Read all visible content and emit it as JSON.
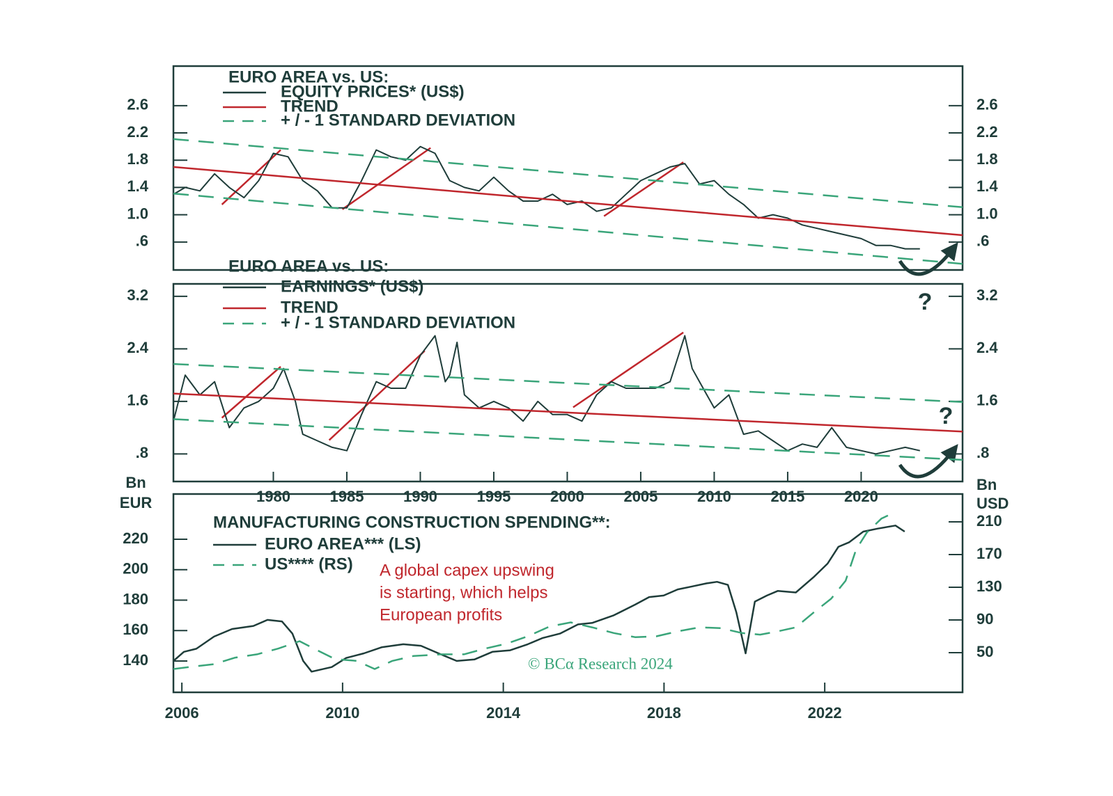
{
  "chart_data": [
    {
      "type": "line",
      "legend_title": "EURO AREA vs. US:",
      "ytick_labels_both_sides": true,
      "xlim": [
        1973.2,
        2026.9
      ],
      "ylim": [
        0.19,
        3.18
      ],
      "yticks": [
        {
          "value": 0.6,
          "label": ".6"
        },
        {
          "value": 1.0,
          "label": "1.0"
        },
        {
          "value": 1.4,
          "label": "1.4"
        },
        {
          "value": 1.8,
          "label": "1.8"
        },
        {
          "value": 2.2,
          "label": "2.2"
        },
        {
          "value": 2.6,
          "label": "2.6"
        }
      ],
      "series": [
        {
          "name": "EQUITY PRICES* (US$)",
          "color": "#1f3d3a",
          "width": 2,
          "x": [
            1973.2,
            1974,
            1975,
            1976,
            1977,
            1978,
            1979,
            1980,
            1981,
            1982,
            1983,
            1984,
            1985,
            1986,
            1987,
            1988,
            1989,
            1990,
            1991,
            1992,
            1993,
            1994,
            1995,
            1996,
            1997,
            1998,
            1999,
            2000,
            2001,
            2002,
            2003,
            2004,
            2005,
            2006,
            2007,
            2008,
            2009,
            2010,
            2011,
            2012,
            2013,
            2014,
            2015,
            2016,
            2017,
            2018,
            2019,
            2020,
            2021,
            2022,
            2023,
            2024
          ],
          "values": [
            1.3,
            1.4,
            1.35,
            1.6,
            1.4,
            1.25,
            1.5,
            1.9,
            1.85,
            1.5,
            1.35,
            1.1,
            1.1,
            1.5,
            1.95,
            1.85,
            1.8,
            2.0,
            1.9,
            1.5,
            1.4,
            1.35,
            1.55,
            1.35,
            1.2,
            1.2,
            1.3,
            1.15,
            1.2,
            1.05,
            1.1,
            1.3,
            1.5,
            1.6,
            1.7,
            1.75,
            1.45,
            1.5,
            1.3,
            1.15,
            0.95,
            1.0,
            0.95,
            0.85,
            0.8,
            0.75,
            0.7,
            0.65,
            0.55,
            0.55,
            0.5,
            0.5
          ]
        },
        {
          "name": "TREND",
          "color": "#c0272d",
          "width": 2.5,
          "x": [
            1973.2,
            2026.9
          ],
          "values": [
            1.7,
            0.7
          ]
        },
        {
          "name": "+ / - 1 STANDARD DEVIATION",
          "color": "#3aa57a",
          "width": 2.5,
          "dashed": true,
          "x": [
            1973.2,
            2026.9
          ],
          "values": [
            2.11,
            1.11
          ],
          "lower": [
            1.31,
            0.28
          ]
        }
      ],
      "trend_segments": {
        "color": "#c0272d",
        "segments": [
          {
            "x": [
              1976.5,
              1980.5
            ],
            "values": [
              1.15,
              1.95
            ]
          },
          {
            "x": [
              1984.7,
              1990.7
            ],
            "values": [
              1.08,
              1.98
            ]
          },
          {
            "x": [
              2002.5,
              2007.9
            ],
            "values": [
              0.98,
              1.77
            ]
          }
        ]
      }
    },
    {
      "type": "line",
      "legend_title": "EURO AREA vs. US:",
      "ytick_labels_both_sides": true,
      "annotations": [
        "?",
        "?"
      ],
      "xlim": [
        1973.2,
        2026.9
      ],
      "xticks": [
        1980,
        1985,
        1990,
        1995,
        2000,
        2005,
        2010,
        2015,
        2020
      ],
      "ylim": [
        0.38,
        3.39
      ],
      "yticks": [
        {
          "value": 0.8,
          "label": ".8"
        },
        1.6,
        2.4,
        3.2
      ],
      "series": [
        {
          "name": "EARNINGS* (US$)",
          "color": "#1f3d3a",
          "width": 2,
          "x": [
            1973.2,
            1974,
            1975,
            1976,
            1977,
            1978,
            1979,
            1980,
            1980.7,
            1981.5,
            1982,
            1983,
            1984,
            1985,
            1986,
            1987,
            1988,
            1989,
            1990,
            1991,
            1991.7,
            1992,
            1992.5,
            1993,
            1994,
            1995,
            1996,
            1997,
            1998,
            1999,
            2000,
            2001,
            2002,
            2003,
            2004,
            2005,
            2006,
            2007,
            2008,
            2008.5,
            2009,
            2010,
            2011,
            2012,
            2013,
            2014,
            2015,
            2016,
            2017,
            2018,
            2019,
            2020,
            2021,
            2022,
            2023,
            2024
          ],
          "values": [
            1.3,
            2.0,
            1.7,
            1.9,
            1.2,
            1.5,
            1.6,
            1.8,
            2.1,
            1.6,
            1.1,
            1.0,
            0.9,
            0.85,
            1.4,
            1.9,
            1.8,
            1.8,
            2.3,
            2.6,
            1.9,
            2.0,
            2.5,
            1.7,
            1.5,
            1.6,
            1.5,
            1.3,
            1.6,
            1.4,
            1.4,
            1.3,
            1.7,
            1.9,
            1.8,
            1.8,
            1.8,
            1.9,
            2.6,
            2.1,
            1.9,
            1.5,
            1.7,
            1.1,
            1.15,
            1.0,
            0.85,
            0.95,
            0.9,
            1.2,
            0.9,
            0.85,
            0.8,
            0.85,
            0.9,
            0.85
          ]
        },
        {
          "name": "TREND",
          "color": "#c0272d",
          "width": 2.5,
          "x": [
            1973.2,
            2026.9
          ],
          "values": [
            1.72,
            1.14
          ]
        },
        {
          "name": "+ / - 1 STANDARD DEVIATION",
          "color": "#3aa57a",
          "width": 2.5,
          "dashed": true,
          "x": [
            1973.2,
            2026.9
          ],
          "values": [
            2.17,
            1.59
          ],
          "lower": [
            1.33,
            0.71
          ]
        }
      ],
      "trend_segments": {
        "color": "#c0272d",
        "segments": [
          {
            "x": [
              1976.5,
              1980.5
            ],
            "values": [
              1.35,
              2.13
            ]
          },
          {
            "x": [
              1983.8,
              1990.3
            ],
            "values": [
              1.01,
              2.37
            ]
          },
          {
            "x": [
              2000.4,
              2007.9
            ],
            "values": [
              1.51,
              2.65
            ]
          }
        ]
      }
    },
    {
      "type": "line",
      "legend_title": "MANUFACTURING CONSTRUCTION SPENDING**:",
      "ylabel": [
        "Bn",
        "EUR"
      ],
      "y2label": [
        "Bn",
        "USD"
      ],
      "annotation": [
        "A global capex upswing",
        "is starting, which helps",
        "European profits"
      ],
      "source": "© BCα Research 2024",
      "xlim": [
        2005.79,
        2025.43
      ],
      "xticks": [
        2006,
        2010,
        2014,
        2018,
        2022
      ],
      "ylim": [
        119.4,
        249.7
      ],
      "yticks": [
        140,
        160,
        180,
        200,
        220
      ],
      "y2lim": [
        1.5,
        244
      ],
      "y2ticks": [
        50,
        90,
        130,
        170,
        210
      ],
      "series": [
        {
          "name": "EURO AREA*** (LS)",
          "color": "#1f3d3a",
          "width": 2.5,
          "x": [
            2005.79,
            2006.05,
            2006.36,
            2006.8,
            2007.25,
            2007.78,
            2008.13,
            2008.49,
            2008.75,
            2009.02,
            2009.23,
            2009.73,
            2010.09,
            2010.53,
            2010.97,
            2011.51,
            2011.95,
            2012.39,
            2012.84,
            2013.28,
            2013.73,
            2014.17,
            2014.61,
            2014.97,
            2015.41,
            2015.86,
            2016.21,
            2016.75,
            2017.28,
            2017.63,
            2017.99,
            2018.34,
            2018.7,
            2019.06,
            2019.32,
            2019.59,
            2019.8,
            2020.03,
            2020.26,
            2020.56,
            2020.83,
            2021.28,
            2021.72,
            2022.07,
            2022.34,
            2022.61,
            2022.96,
            2023.32,
            2023.76,
            2023.99
          ],
          "values": [
            140,
            146,
            148,
            156,
            161,
            163,
            167,
            166,
            158,
            140,
            133,
            136,
            142,
            145,
            149,
            151,
            150,
            145,
            140,
            141,
            146,
            147,
            151,
            155,
            158,
            164,
            165,
            170,
            177,
            182,
            183,
            187,
            189,
            191,
            192,
            190,
            172,
            145,
            179,
            183,
            186,
            185,
            195,
            204,
            215,
            218,
            225,
            227,
            229,
            225
          ]
        },
        {
          "name": "US**** (RS)",
          "color": "#3aa57a",
          "width": 2.5,
          "dashed": true,
          "axis": "y2",
          "x": [
            2005.79,
            2006.27,
            2006.8,
            2007.33,
            2007.87,
            2008.4,
            2008.93,
            2009.37,
            2009.82,
            2010.35,
            2010.8,
            2011.24,
            2011.77,
            2012.48,
            2013.02,
            2013.55,
            2014.08,
            2014.61,
            2015.15,
            2015.68,
            2016.21,
            2016.75,
            2017.28,
            2017.81,
            2018.34,
            2018.88,
            2019.41,
            2019.94,
            2020.39,
            2020.83,
            2021.28,
            2021.72,
            2022.16,
            2022.52,
            2022.78,
            2023.05,
            2023.41,
            2023.67
          ],
          "values": [
            30,
            33,
            36,
            44,
            48,
            55,
            64,
            53,
            42,
            40,
            30,
            40,
            46,
            48,
            48,
            55,
            61,
            70,
            82,
            87,
            81,
            74,
            69,
            70,
            76,
            81,
            80,
            74,
            72,
            76,
            81,
            99,
            116,
            138,
            176,
            197,
            214,
            220
          ]
        }
      ]
    }
  ]
}
